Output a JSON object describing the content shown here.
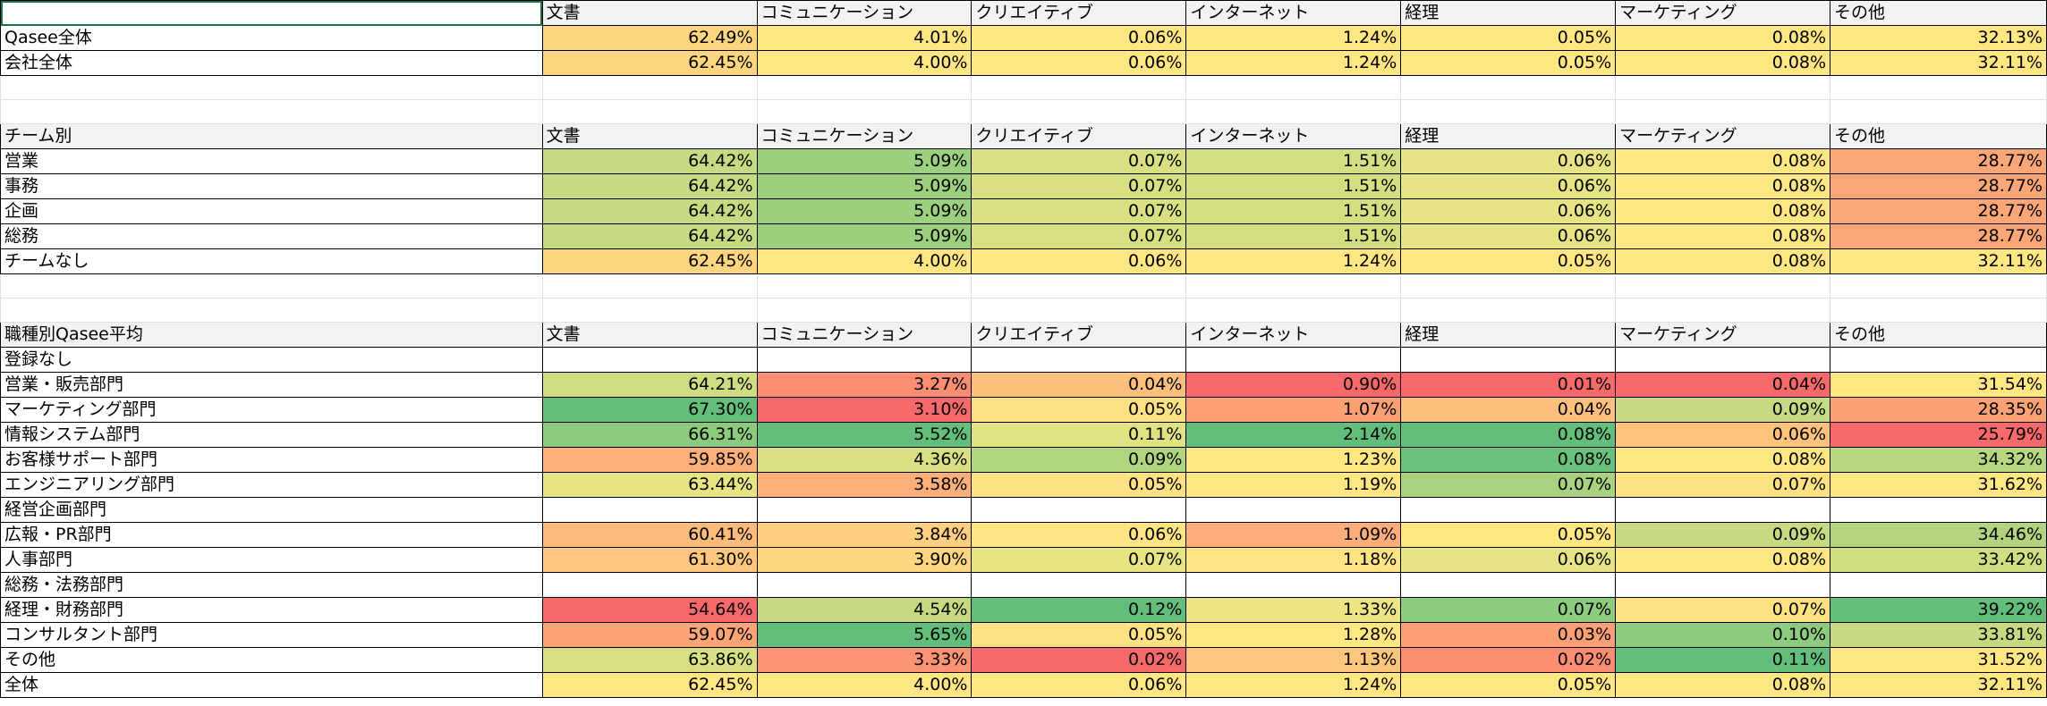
{
  "columns": [
    "文書",
    "コミュニケーション",
    "クリエイティブ",
    "インターネット",
    "経理",
    "マーケティング",
    "その他"
  ],
  "sections": [
    {
      "title": "",
      "rows": [
        {
          "label": "Qasee全体",
          "values": [
            "62.49%",
            "4.01%",
            "0.06%",
            "1.24%",
            "0.05%",
            "0.08%",
            "32.13%"
          ],
          "colors": [
            "#fdd57f",
            "#fee683",
            "#fee683",
            "#fee683",
            "#fee683",
            "#fee683",
            "#fee683"
          ]
        },
        {
          "label": "会社全体",
          "values": [
            "62.45%",
            "4.00%",
            "0.06%",
            "1.24%",
            "0.05%",
            "0.08%",
            "32.11%"
          ],
          "colors": [
            "#fdd57f",
            "#fee683",
            "#fee683",
            "#fee683",
            "#fee683",
            "#fee683",
            "#fee683"
          ]
        }
      ]
    },
    {
      "title": "チーム別",
      "rows": [
        {
          "label": "営業",
          "values": [
            "64.42%",
            "5.09%",
            "0.07%",
            "1.51%",
            "0.06%",
            "0.08%",
            "28.77%"
          ],
          "colors": [
            "#c6db81",
            "#9ccf7e",
            "#d9e082",
            "#d4df82",
            "#e5e383",
            "#fee683",
            "#fba676"
          ]
        },
        {
          "label": "事務",
          "values": [
            "64.42%",
            "5.09%",
            "0.07%",
            "1.51%",
            "0.06%",
            "0.08%",
            "28.77%"
          ],
          "colors": [
            "#c6db81",
            "#9ccf7e",
            "#d9e082",
            "#d4df82",
            "#e5e383",
            "#fee683",
            "#fba676"
          ]
        },
        {
          "label": "企画",
          "values": [
            "64.42%",
            "5.09%",
            "0.07%",
            "1.51%",
            "0.06%",
            "0.08%",
            "28.77%"
          ],
          "colors": [
            "#c6db81",
            "#9ccf7e",
            "#d9e082",
            "#d4df82",
            "#e5e383",
            "#fee683",
            "#fba676"
          ]
        },
        {
          "label": "総務",
          "values": [
            "64.42%",
            "5.09%",
            "0.07%",
            "1.51%",
            "0.06%",
            "0.08%",
            "28.77%"
          ],
          "colors": [
            "#c6db81",
            "#9ccf7e",
            "#d9e082",
            "#d4df82",
            "#e5e383",
            "#fee683",
            "#fba676"
          ]
        },
        {
          "label": "チームなし",
          "values": [
            "62.45%",
            "4.00%",
            "0.06%",
            "1.24%",
            "0.05%",
            "0.08%",
            "32.11%"
          ],
          "colors": [
            "#fdd57f",
            "#fee683",
            "#fee683",
            "#fee683",
            "#fee683",
            "#fee683",
            "#fee683"
          ]
        }
      ]
    },
    {
      "title": "職種別Qasee平均",
      "rows": [
        {
          "label": "登録なし",
          "values": [
            "",
            "",
            "",
            "",
            "",
            "",
            ""
          ],
          "colors": [
            "#ffffff",
            "#ffffff",
            "#ffffff",
            "#ffffff",
            "#ffffff",
            "#ffffff",
            "#ffffff"
          ]
        },
        {
          "label": "営業・販売部門",
          "values": [
            "64.21%",
            "3.27%",
            "0.04%",
            "0.90%",
            "0.01%",
            "0.04%",
            "31.54%"
          ],
          "colors": [
            "#cfdd82",
            "#fb8e72",
            "#fdc07c",
            "#f8696b",
            "#f8696b",
            "#f8696b",
            "#fee683"
          ]
        },
        {
          "label": "マーケティング部門",
          "values": [
            "67.30%",
            "3.10%",
            "0.05%",
            "1.07%",
            "0.04%",
            "0.09%",
            "28.35%"
          ],
          "colors": [
            "#63be7b",
            "#f8696b",
            "#fee182",
            "#fca074",
            "#fdc07c",
            "#c5da81",
            "#fba176"
          ]
        },
        {
          "label": "情報システム部門",
          "values": [
            "66.31%",
            "5.52%",
            "0.11%",
            "2.14%",
            "0.08%",
            "0.06%",
            "25.79%"
          ],
          "colors": [
            "#8cca7d",
            "#63be7b",
            "#e1e282",
            "#63be7b",
            "#63be7b",
            "#fdc37d",
            "#f8696b"
          ]
        },
        {
          "label": "お客様サポート部門",
          "values": [
            "59.85%",
            "4.36%",
            "0.09%",
            "1.23%",
            "0.08%",
            "0.08%",
            "34.32%"
          ],
          "colors": [
            "#fcb079",
            "#d9e082",
            "#b1d47f",
            "#fee683",
            "#6bc17c",
            "#fee683",
            "#b6d680"
          ]
        },
        {
          "label": "エンジニアリング部門",
          "values": [
            "63.44%",
            "3.58%",
            "0.05%",
            "1.19%",
            "0.07%",
            "0.07%",
            "31.62%"
          ],
          "colors": [
            "#e6e483",
            "#fcaf79",
            "#fee182",
            "#fee683",
            "#a8d27f",
            "#fee282",
            "#fee683"
          ]
        },
        {
          "label": "経営企画部門",
          "values": [
            "",
            "",
            "",
            "",
            "",
            "",
            ""
          ],
          "colors": [
            "#ffffff",
            "#ffffff",
            "#ffffff",
            "#ffffff",
            "#ffffff",
            "#ffffff",
            "#ffffff"
          ]
        },
        {
          "label": "広報・PR部門",
          "values": [
            "60.41%",
            "3.84%",
            "0.06%",
            "1.09%",
            "0.05%",
            "0.09%",
            "34.46%"
          ],
          "colors": [
            "#fcba7b",
            "#fdcf7f",
            "#fee483",
            "#fcad79",
            "#fee683",
            "#c5da81",
            "#b2d47f"
          ]
        },
        {
          "label": "人事部門",
          "values": [
            "61.30%",
            "3.90%",
            "0.07%",
            "1.18%",
            "0.06%",
            "0.08%",
            "33.42%"
          ],
          "colors": [
            "#fdc87e",
            "#fed67f",
            "#e7e483",
            "#fee483",
            "#e5e383",
            "#fee683",
            "#d0de82"
          ]
        },
        {
          "label": "総務・法務部門",
          "values": [
            "",
            "",
            "",
            "",
            "",
            "",
            ""
          ],
          "colors": [
            "#ffffff",
            "#ffffff",
            "#ffffff",
            "#ffffff",
            "#ffffff",
            "#ffffff",
            "#ffffff"
          ]
        },
        {
          "label": "経理・財務部門",
          "values": [
            "54.64%",
            "4.54%",
            "0.12%",
            "1.33%",
            "0.07%",
            "0.07%",
            "39.22%"
          ],
          "colors": [
            "#f8696b",
            "#c6db81",
            "#63be7b",
            "#ede583",
            "#8dcb7e",
            "#fee282",
            "#63be7b"
          ]
        },
        {
          "label": "コンサルタント部門",
          "values": [
            "59.07%",
            "5.65%",
            "0.05%",
            "1.28%",
            "0.03%",
            "0.10%",
            "33.81%"
          ],
          "colors": [
            "#fba476",
            "#63be7b",
            "#fee182",
            "#fee683",
            "#fba076",
            "#8dcb7e",
            "#c5da81"
          ]
        },
        {
          "label": "その他",
          "values": [
            "63.86%",
            "3.33%",
            "0.02%",
            "1.13%",
            "0.02%",
            "0.11%",
            "31.52%"
          ],
          "colors": [
            "#d9e082",
            "#fb9473",
            "#f8696b",
            "#fdc67d",
            "#fc8d72",
            "#63be7b",
            "#fee683"
          ]
        },
        {
          "label": "全体",
          "values": [
            "62.45%",
            "4.00%",
            "0.06%",
            "1.24%",
            "0.05%",
            "0.08%",
            "32.11%"
          ],
          "colors": [
            "#fee683",
            "#fee683",
            "#fee683",
            "#fee683",
            "#fee683",
            "#fee683",
            "#fee683"
          ]
        }
      ]
    }
  ]
}
